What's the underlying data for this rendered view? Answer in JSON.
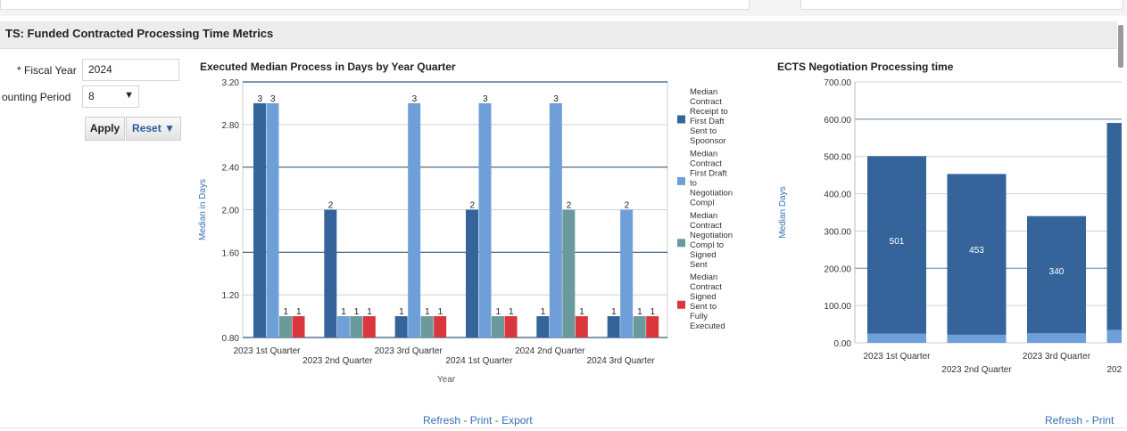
{
  "section_title": "TS: Funded Contracted Processing Time Metrics",
  "prompts": {
    "fiscal_year_label": "* Fiscal Year",
    "fiscal_year_value": "2024",
    "accounting_period_label": "ounting Period",
    "accounting_period_value": "8",
    "apply_label": "Apply",
    "reset_label": "Reset ▼"
  },
  "chart_links": {
    "refresh": "Refresh",
    "print": "Print",
    "export": "Export",
    "dash": " - "
  },
  "chart_data": [
    {
      "type": "bar",
      "title": "Executed Median Process in Days by Year Quarter",
      "xlabel": "Year",
      "ylabel": "Median in Days",
      "ylim": [
        0.8,
        3.2
      ],
      "yticks": [
        "0.80",
        "1.20",
        "1.60",
        "2.00",
        "2.40",
        "2.80",
        "3.20"
      ],
      "categories": [
        "2023 1st Quarter",
        "2023 2nd Quarter",
        "2023 3rd Quarter",
        "2024 1st Quarter",
        "2024 2nd Quarter",
        "2024 3rd Quarter"
      ],
      "series": [
        {
          "name": "Median Contract Receipt to First Daft Sent to Spoonsor",
          "legend_lines": [
            "Median",
            "Contract",
            "Receipt to",
            "First Daft",
            "Sent to",
            "Spoonsor"
          ],
          "color": "#34649a",
          "values": [
            3,
            2,
            1,
            2,
            1,
            1
          ]
        },
        {
          "name": "Median Contract First Draft to Negotiation Compl",
          "legend_lines": [
            "Median",
            "Contract",
            "First Draft",
            "to",
            "Negotiation",
            "Compl"
          ],
          "color": "#6f9fd8",
          "values": [
            3,
            1,
            3,
            3,
            3,
            2
          ]
        },
        {
          "name": "Median Contract Negotiation Compl to Signed Sent",
          "legend_lines": [
            "Median",
            "Contract",
            "Negotiation",
            "Compl to",
            "Signed",
            "Sent"
          ],
          "color": "#6a9a9b",
          "values": [
            1,
            1,
            1,
            1,
            2,
            1
          ]
        },
        {
          "name": "Median Contract Signed Sent to Fully Executed",
          "legend_lines": [
            "Median",
            "Contract",
            "Signed",
            "Sent to",
            "Fully",
            "Executed"
          ],
          "color": "#d9363e",
          "values": [
            1,
            1,
            1,
            1,
            1,
            1
          ]
        }
      ]
    },
    {
      "type": "bar",
      "title": "ECTS Negotiation Processing time",
      "xlabel": "",
      "ylabel": "Median Days",
      "ylim": [
        0,
        700
      ],
      "yticks": [
        "0.00",
        "100.00",
        "200.00",
        "300.00",
        "400.00",
        "500.00",
        "600.00",
        "700.00"
      ],
      "categories": [
        "2023 1st Quarter",
        "2023 2nd Quarter",
        "2023 3rd Quarter",
        "202"
      ],
      "series": [
        {
          "name": "",
          "color": "#34649a",
          "values": [
            501,
            453,
            340,
            590
          ]
        },
        {
          "name": "",
          "color": "#6f9fd8",
          "values": [
            25,
            22,
            26,
            35
          ]
        }
      ],
      "data_labels": [
        "501",
        "453",
        "340",
        ""
      ]
    }
  ]
}
